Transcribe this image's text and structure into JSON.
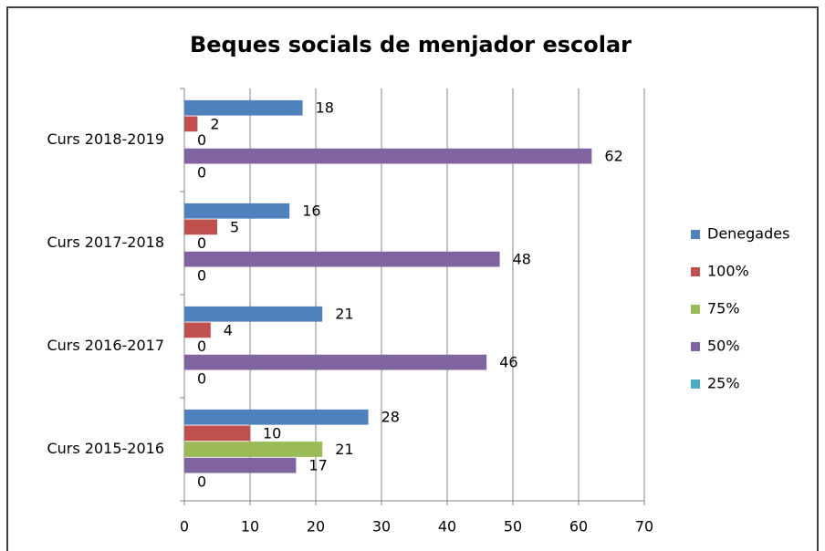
{
  "chart_data": {
    "type": "bar",
    "orientation": "horizontal",
    "title": "Beques socials de menjador escolar",
    "categories": [
      "Curs 2015-2016",
      "Curs 2016-2017",
      "Curs 2017-2018",
      "Curs 2018-2019"
    ],
    "series": [
      {
        "name": "Denegades",
        "color": "#4f81bd",
        "values": [
          28,
          21,
          16,
          18
        ]
      },
      {
        "name": "100%",
        "color": "#c0504d",
        "values": [
          10,
          4,
          5,
          2
        ]
      },
      {
        "name": "75%",
        "color": "#9bbb59",
        "values": [
          21,
          0,
          0,
          0
        ]
      },
      {
        "name": "50%",
        "color": "#8064a2",
        "values": [
          17,
          46,
          48,
          62
        ]
      },
      {
        "name": "25%",
        "color": "#4bacc6",
        "values": [
          0,
          0,
          0,
          0
        ]
      }
    ],
    "xlim": [
      0,
      70
    ],
    "xticks": [
      0,
      10,
      20,
      30,
      40,
      50,
      60,
      70
    ],
    "grid": true,
    "legend": "right"
  }
}
